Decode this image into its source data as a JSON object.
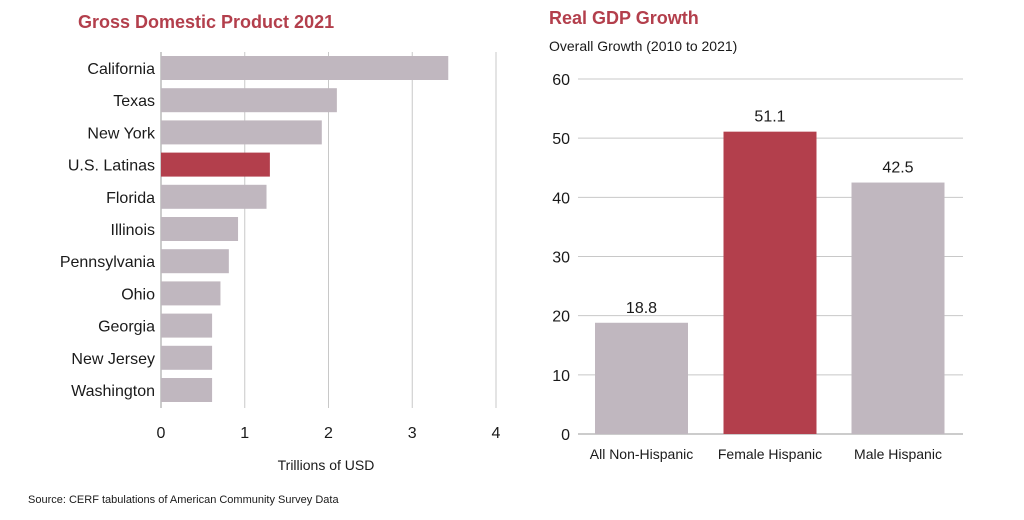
{
  "colors": {
    "bar": "#c0b7bf",
    "highlight": "#b33f4c",
    "grid": "#c8c8c8",
    "axis": "#999999"
  },
  "source": "Source: CERF tabulations of American Community Survey Data",
  "chart_data": [
    {
      "type": "bar",
      "orientation": "horizontal",
      "title": "Gross Domestic Product 2021",
      "xlabel": "Trillions of USD",
      "xlim": [
        0,
        4
      ],
      "xticks": [
        0,
        1,
        2,
        3,
        4
      ],
      "categories": [
        "California",
        "Texas",
        "New York",
        "U.S. Latinas",
        "Florida",
        "Illinois",
        "Pennsylvania",
        "Ohio",
        "Georgia",
        "New Jersey",
        "Washington"
      ],
      "values": [
        3.43,
        2.1,
        1.92,
        1.3,
        1.26,
        0.92,
        0.81,
        0.71,
        0.61,
        0.61,
        0.61
      ],
      "highlight": "U.S. Latinas",
      "grid": "vertical"
    },
    {
      "type": "bar",
      "orientation": "vertical",
      "title": "Real GDP Growth",
      "subtitle": "Overall Growth (2010 to 2021)",
      "ylim": [
        0,
        60
      ],
      "yticks": [
        0,
        10,
        20,
        30,
        40,
        50,
        60
      ],
      "categories": [
        "All Non-Hispanic",
        "Female Hispanic",
        "Male Hispanic"
      ],
      "values": [
        18.8,
        51.1,
        42.5
      ],
      "labels": [
        "18.8",
        "51.1",
        "42.5"
      ],
      "highlight": "Female Hispanic",
      "grid": "horizontal"
    }
  ]
}
